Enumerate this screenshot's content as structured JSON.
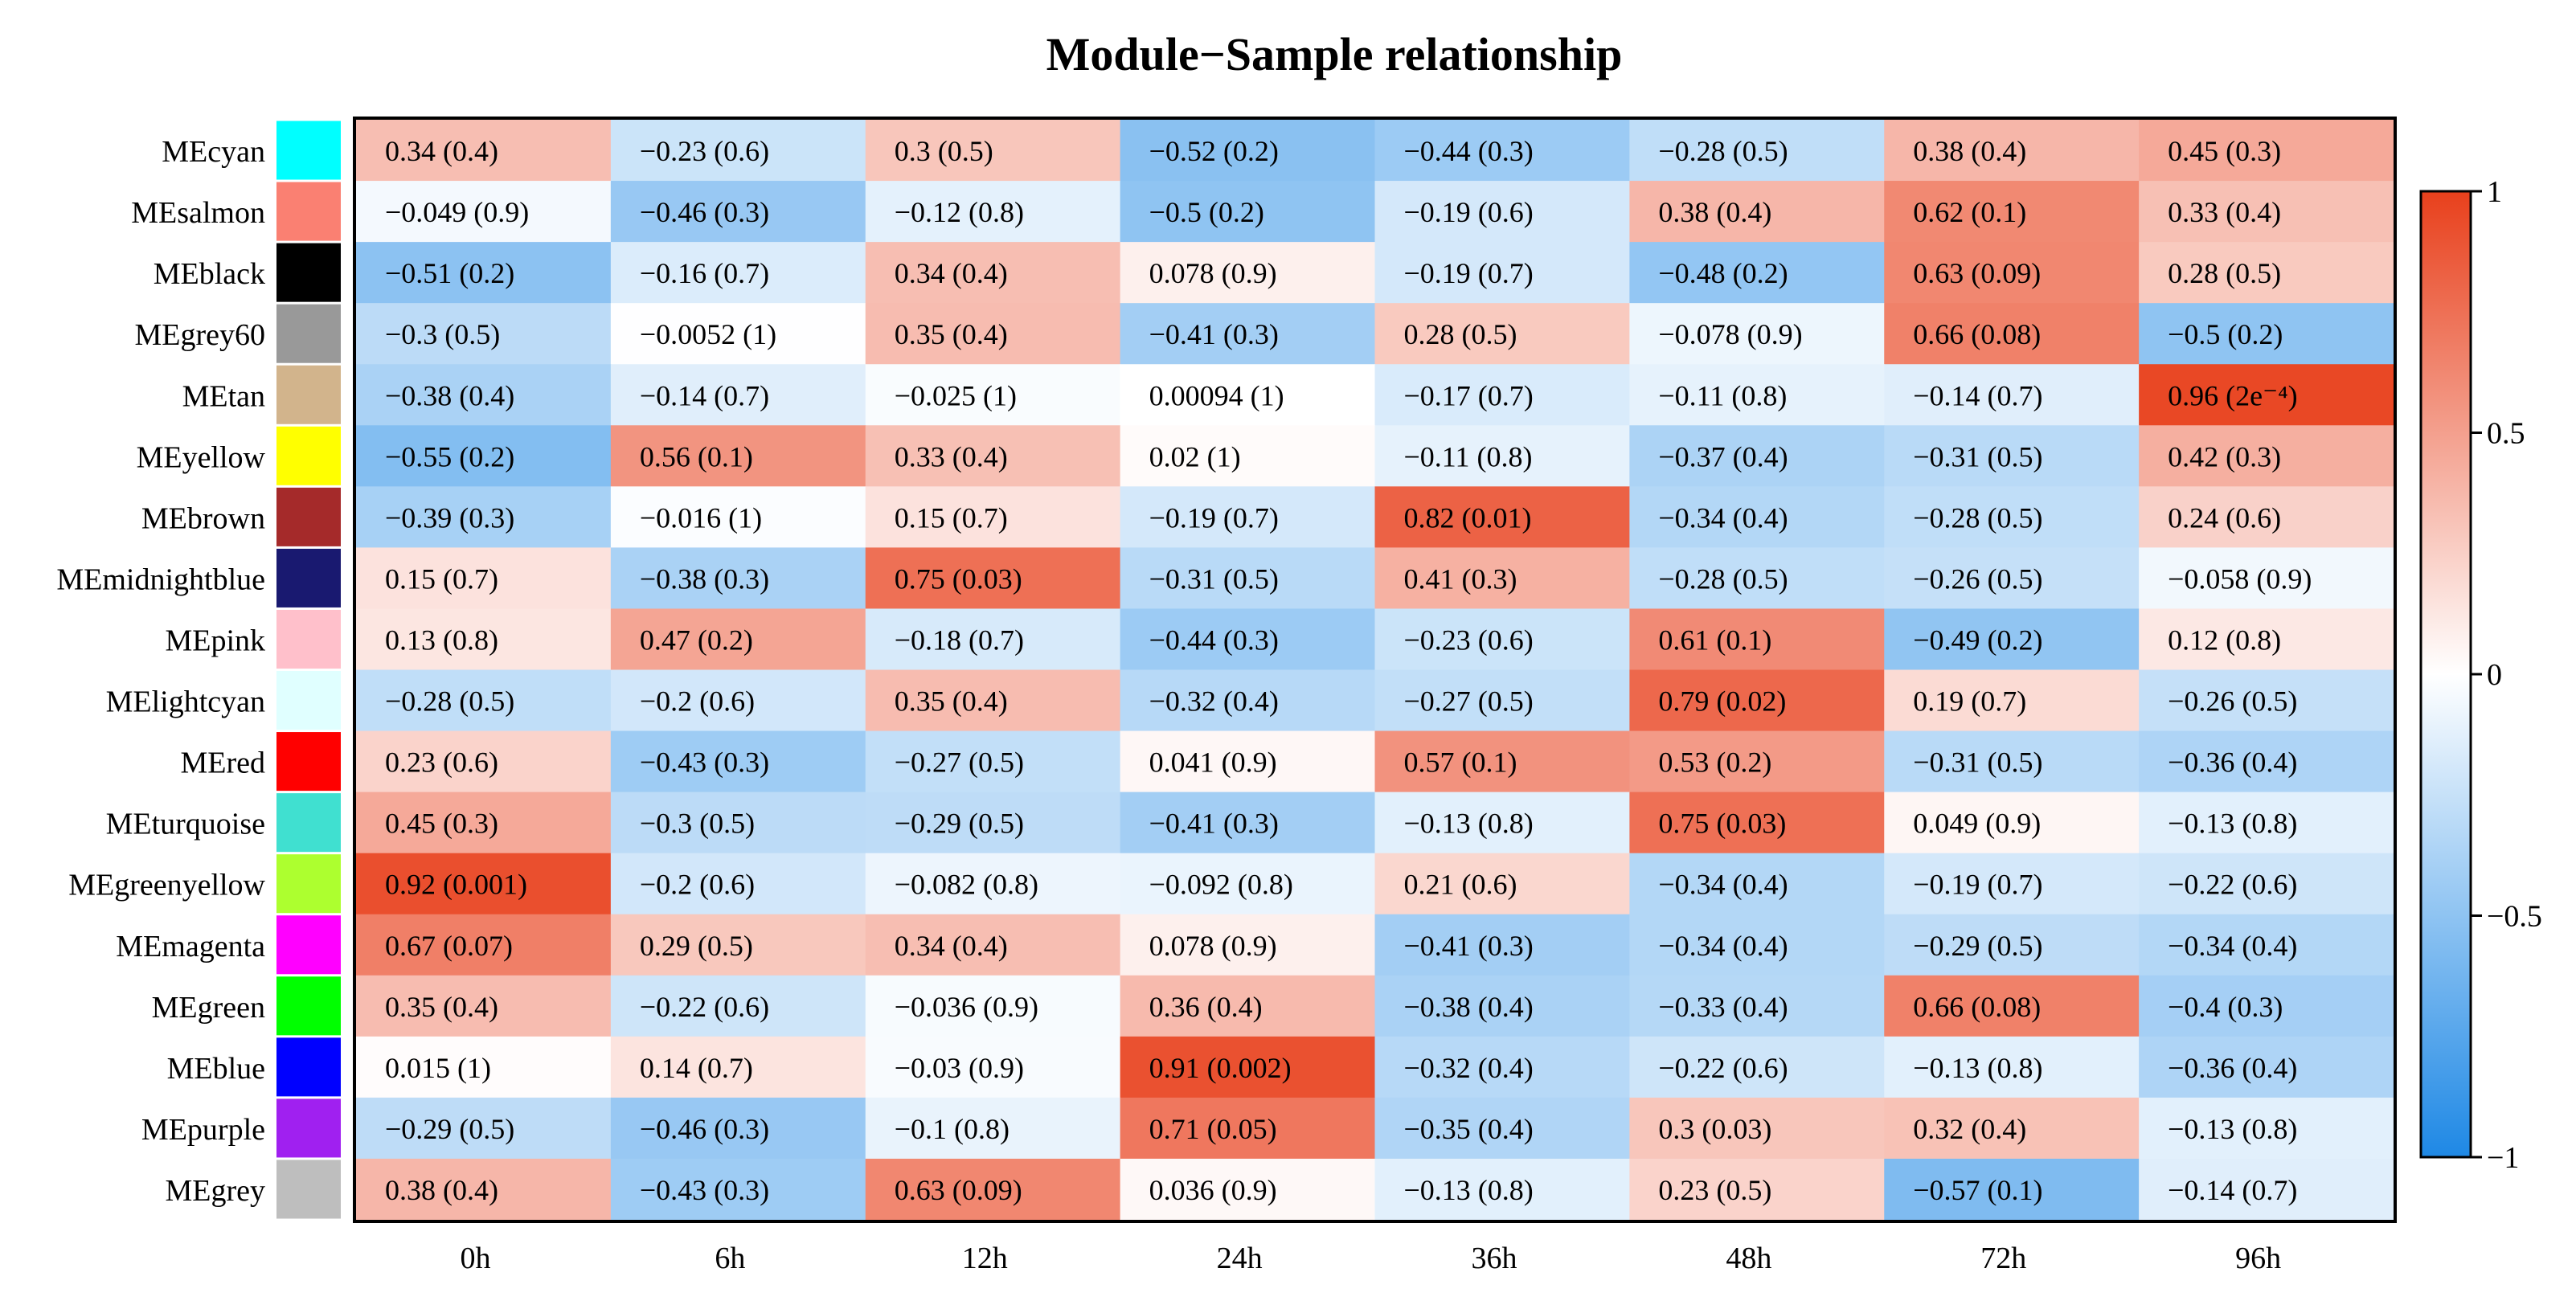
{
  "chart_data": {
    "type": "heatmap",
    "title": "Module−Sample relationship",
    "xlabel": "",
    "ylabel": "",
    "columns": [
      "0h",
      "6h",
      "12h",
      "24h",
      "36h",
      "48h",
      "72h",
      "96h"
    ],
    "rows": [
      {
        "module": "MEcyan",
        "color": "#00FFFF",
        "values": [
          0.34,
          -0.23,
          0.3,
          -0.52,
          -0.44,
          -0.28,
          0.38,
          0.45
        ],
        "labels": [
          "0.34 (0.4)",
          "−0.23 (0.6)",
          "0.3 (0.5)",
          "−0.52 (0.2)",
          "−0.44 (0.3)",
          "−0.28 (0.5)",
          "0.38 (0.4)",
          "0.45 (0.3)"
        ]
      },
      {
        "module": "MEsalmon",
        "color": "#FA8072",
        "values": [
          -0.049,
          -0.46,
          -0.12,
          -0.5,
          -0.19,
          0.38,
          0.62,
          0.33
        ],
        "labels": [
          "−0.049 (0.9)",
          "−0.46 (0.3)",
          "−0.12 (0.8)",
          "−0.5 (0.2)",
          "−0.19 (0.6)",
          "0.38 (0.4)",
          "0.62 (0.1)",
          "0.33 (0.4)"
        ]
      },
      {
        "module": "MEblack",
        "color": "#000000",
        "values": [
          -0.51,
          -0.16,
          0.34,
          0.078,
          -0.19,
          -0.48,
          0.63,
          0.28
        ],
        "labels": [
          "−0.51 (0.2)",
          "−0.16 (0.7)",
          "0.34 (0.4)",
          "0.078 (0.9)",
          "−0.19 (0.7)",
          "−0.48 (0.2)",
          "0.63 (0.09)",
          "0.28 (0.5)"
        ]
      },
      {
        "module": "MEgrey60",
        "color": "#999999",
        "values": [
          -0.3,
          -0.0052,
          0.35,
          -0.41,
          0.28,
          -0.078,
          0.66,
          -0.5
        ],
        "labels": [
          "−0.3 (0.5)",
          "−0.0052 (1)",
          "0.35 (0.4)",
          "−0.41 (0.3)",
          "0.28 (0.5)",
          "−0.078 (0.9)",
          "0.66 (0.08)",
          "−0.5 (0.2)"
        ]
      },
      {
        "module": "MEtan",
        "color": "#D2B48C",
        "values": [
          -0.38,
          -0.14,
          -0.025,
          0.00094,
          -0.17,
          -0.11,
          -0.14,
          0.96
        ],
        "labels": [
          "−0.38 (0.4)",
          "−0.14 (0.7)",
          "−0.025 (1)",
          "0.00094 (1)",
          "−0.17 (0.7)",
          "−0.11 (0.8)",
          "−0.14 (0.7)",
          "0.96 (2e⁻⁴)"
        ]
      },
      {
        "module": "MEyellow",
        "color": "#FFFF00",
        "values": [
          -0.55,
          0.56,
          0.33,
          0.02,
          -0.11,
          -0.37,
          -0.31,
          0.42
        ],
        "labels": [
          "−0.55 (0.2)",
          "0.56 (0.1)",
          "0.33 (0.4)",
          "0.02 (1)",
          "−0.11 (0.8)",
          "−0.37 (0.4)",
          "−0.31 (0.5)",
          "0.42 (0.3)"
        ]
      },
      {
        "module": "MEbrown",
        "color": "#A52A2A",
        "values": [
          -0.39,
          -0.016,
          0.15,
          -0.19,
          0.82,
          -0.34,
          -0.28,
          0.24
        ],
        "labels": [
          "−0.39 (0.3)",
          "−0.016 (1)",
          "0.15 (0.7)",
          "−0.19 (0.7)",
          "0.82 (0.01)",
          "−0.34 (0.4)",
          "−0.28 (0.5)",
          "0.24 (0.6)"
        ]
      },
      {
        "module": "MEmidnightblue",
        "color": "#191970",
        "values": [
          0.15,
          -0.38,
          0.75,
          -0.31,
          0.41,
          -0.28,
          -0.26,
          -0.058
        ],
        "labels": [
          "0.15 (0.7)",
          "−0.38 (0.3)",
          "0.75 (0.03)",
          "−0.31 (0.5)",
          "0.41 (0.3)",
          "−0.28 (0.5)",
          "−0.26 (0.5)",
          "−0.058 (0.9)"
        ]
      },
      {
        "module": "MEpink",
        "color": "#FFC0CB",
        "values": [
          0.13,
          0.47,
          -0.18,
          -0.44,
          -0.23,
          0.61,
          -0.49,
          0.12
        ],
        "labels": [
          "0.13 (0.8)",
          "0.47 (0.2)",
          "−0.18 (0.7)",
          "−0.44 (0.3)",
          "−0.23 (0.6)",
          "0.61 (0.1)",
          "−0.49 (0.2)",
          "0.12 (0.8)"
        ]
      },
      {
        "module": "MElightcyan",
        "color": "#E0FFFF",
        "values": [
          -0.28,
          -0.2,
          0.35,
          -0.32,
          -0.27,
          0.79,
          0.19,
          -0.26
        ],
        "labels": [
          "−0.28 (0.5)",
          "−0.2 (0.6)",
          "0.35 (0.4)",
          "−0.32 (0.4)",
          "−0.27 (0.5)",
          "0.79 (0.02)",
          "0.19 (0.7)",
          "−0.26 (0.5)"
        ]
      },
      {
        "module": "MEred",
        "color": "#FF0000",
        "values": [
          0.23,
          -0.43,
          -0.27,
          0.041,
          0.57,
          0.53,
          -0.31,
          -0.36
        ],
        "labels": [
          "0.23 (0.6)",
          "−0.43 (0.3)",
          "−0.27 (0.5)",
          "0.041 (0.9)",
          "0.57 (0.1)",
          "0.53 (0.2)",
          "−0.31 (0.5)",
          "−0.36 (0.4)"
        ]
      },
      {
        "module": "MEturquoise",
        "color": "#40E0D0",
        "values": [
          0.45,
          -0.3,
          -0.29,
          -0.41,
          -0.13,
          0.75,
          0.049,
          -0.13
        ],
        "labels": [
          "0.45 (0.3)",
          "−0.3 (0.5)",
          "−0.29 (0.5)",
          "−0.41 (0.3)",
          "−0.13 (0.8)",
          "0.75 (0.03)",
          "0.049 (0.9)",
          "−0.13 (0.8)"
        ]
      },
      {
        "module": "MEgreenyellow",
        "color": "#ADFF2F",
        "values": [
          0.92,
          -0.2,
          -0.082,
          -0.092,
          0.21,
          -0.34,
          -0.19,
          -0.22
        ],
        "labels": [
          "0.92 (0.001)",
          "−0.2 (0.6)",
          "−0.082 (0.8)",
          "−0.092 (0.8)",
          "0.21 (0.6)",
          "−0.34 (0.4)",
          "−0.19 (0.7)",
          "−0.22 (0.6)"
        ]
      },
      {
        "module": "MEmagenta",
        "color": "#FF00FF",
        "values": [
          0.67,
          0.29,
          0.34,
          0.078,
          -0.41,
          -0.34,
          -0.29,
          -0.34
        ],
        "labels": [
          "0.67 (0.07)",
          "0.29 (0.5)",
          "0.34 (0.4)",
          "0.078 (0.9)",
          "−0.41 (0.3)",
          "−0.34 (0.4)",
          "−0.29 (0.5)",
          "−0.34 (0.4)"
        ]
      },
      {
        "module": "MEgreen",
        "color": "#00FF00",
        "values": [
          0.35,
          -0.22,
          -0.036,
          0.36,
          -0.38,
          -0.33,
          0.66,
          -0.4
        ],
        "labels": [
          "0.35 (0.4)",
          "−0.22 (0.6)",
          "−0.036 (0.9)",
          "0.36 (0.4)",
          "−0.38 (0.4)",
          "−0.33 (0.4)",
          "0.66 (0.08)",
          "−0.4 (0.3)"
        ]
      },
      {
        "module": "MEblue",
        "color": "#0000FF",
        "values": [
          0.015,
          0.14,
          -0.03,
          0.91,
          -0.32,
          -0.22,
          -0.13,
          -0.36
        ],
        "labels": [
          "0.015 (1)",
          "0.14 (0.7)",
          "−0.03 (0.9)",
          "0.91 (0.002)",
          "−0.32 (0.4)",
          "−0.22 (0.6)",
          "−0.13 (0.8)",
          "−0.36 (0.4)"
        ]
      },
      {
        "module": "MEpurple",
        "color": "#A020F0",
        "values": [
          -0.29,
          -0.46,
          -0.1,
          0.71,
          -0.35,
          0.3,
          0.32,
          -0.13
        ],
        "labels": [
          "−0.29 (0.5)",
          "−0.46 (0.3)",
          "−0.1 (0.8)",
          "0.71 (0.05)",
          "−0.35 (0.4)",
          "0.3 (0.03)",
          "0.32 (0.4)",
          "−0.13 (0.8)"
        ]
      },
      {
        "module": "MEgrey",
        "color": "#BEBEBE",
        "values": [
          0.38,
          -0.43,
          0.63,
          0.036,
          -0.13,
          0.23,
          -0.57,
          -0.14
        ],
        "labels": [
          "0.38 (0.4)",
          "−0.43 (0.3)",
          "0.63 (0.09)",
          "0.036 (0.9)",
          "−0.13 (0.8)",
          "0.23 (0.5)",
          "−0.57 (0.1)",
          "−0.14 (0.7)"
        ]
      }
    ],
    "colorbar": {
      "range": [
        -1,
        1
      ],
      "ticks": [
        1,
        0.5,
        0,
        -0.5,
        -1
      ],
      "tick_labels": [
        "1",
        "0.5",
        "0",
        "−0.5",
        "−1"
      ],
      "low_color": "#1E88E5",
      "mid_color": "#FFFFFF",
      "high_color": "#E8401C"
    }
  }
}
